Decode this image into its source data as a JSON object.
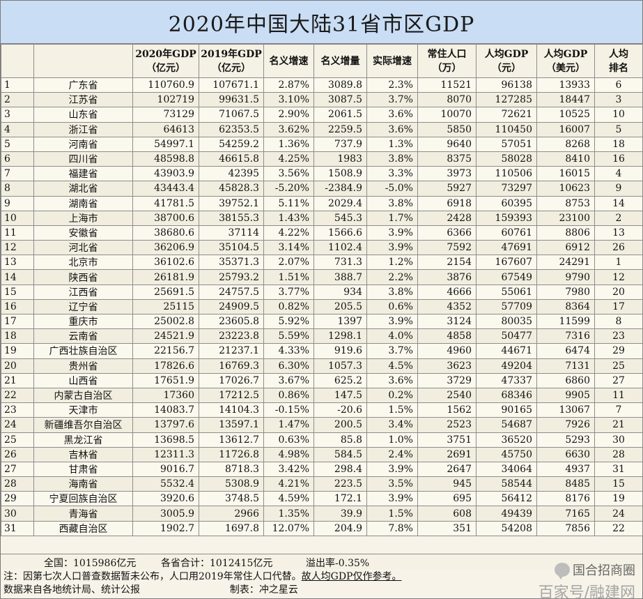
{
  "title": "2020年中国大陆31省市区GDP",
  "headers": [
    "",
    "",
    "2020年GDP\n（亿元）",
    "2019年GDP\n（亿元）",
    "名义增速",
    "名义增量",
    "实际增速",
    "常住人口\n（万）",
    "人均GDP\n（元）",
    "人均GDP\n（美元）",
    "人均\n排名"
  ],
  "rows": [
    [
      "1",
      "广东省",
      "110760.9",
      "107671.1",
      "2.87%",
      "3089.8",
      "2.3%",
      "11521",
      "96138",
      "13933",
      "6"
    ],
    [
      "2",
      "江苏省",
      "102719",
      "99631.5",
      "3.10%",
      "3087.5",
      "3.7%",
      "8070",
      "127285",
      "18447",
      "3"
    ],
    [
      "3",
      "山东省",
      "73129",
      "71067.5",
      "2.90%",
      "2061.5",
      "3.6%",
      "10070",
      "72621",
      "10525",
      "10"
    ],
    [
      "4",
      "浙江省",
      "64613",
      "62353.5",
      "3.62%",
      "2259.5",
      "3.6%",
      "5850",
      "110450",
      "16007",
      "5"
    ],
    [
      "5",
      "河南省",
      "54997.1",
      "54259.2",
      "1.36%",
      "737.9",
      "1.3%",
      "9640",
      "57051",
      "8268",
      "18"
    ],
    [
      "6",
      "四川省",
      "48598.8",
      "46615.8",
      "4.25%",
      "1983",
      "3.8%",
      "8375",
      "58028",
      "8410",
      "16"
    ],
    [
      "7",
      "福建省",
      "43903.9",
      "42395",
      "3.56%",
      "1508.9",
      "3.3%",
      "3973",
      "110506",
      "16015",
      "4"
    ],
    [
      "8",
      "湖北省",
      "43443.4",
      "45828.3",
      "-5.20%",
      "-2384.9",
      "-5.0%",
      "5927",
      "73297",
      "10623",
      "9"
    ],
    [
      "9",
      "湖南省",
      "41781.5",
      "39752.1",
      "5.11%",
      "2029.4",
      "3.8%",
      "6918",
      "60395",
      "8753",
      "14"
    ],
    [
      "10",
      "上海市",
      "38700.6",
      "38155.3",
      "1.43%",
      "545.3",
      "1.7%",
      "2428",
      "159393",
      "23100",
      "2"
    ],
    [
      "11",
      "安徽省",
      "38680.6",
      "37114",
      "4.22%",
      "1566.6",
      "3.9%",
      "6366",
      "60761",
      "8806",
      "13"
    ],
    [
      "12",
      "河北省",
      "36206.9",
      "35104.5",
      "3.14%",
      "1102.4",
      "3.9%",
      "7592",
      "47691",
      "6912",
      "26"
    ],
    [
      "13",
      "北京市",
      "36102.6",
      "35371.3",
      "2.07%",
      "731.3",
      "1.2%",
      "2154",
      "167607",
      "24291",
      "1"
    ],
    [
      "14",
      "陕西省",
      "26181.9",
      "25793.2",
      "1.51%",
      "388.7",
      "2.2%",
      "3876",
      "67549",
      "9790",
      "12"
    ],
    [
      "15",
      "江西省",
      "25691.5",
      "24757.5",
      "3.77%",
      "934",
      "3.8%",
      "4666",
      "55061",
      "7980",
      "20"
    ],
    [
      "16",
      "辽宁省",
      "25115",
      "24909.5",
      "0.82%",
      "205.5",
      "0.6%",
      "4352",
      "57709",
      "8364",
      "17"
    ],
    [
      "17",
      "重庆市",
      "25002.8",
      "23605.8",
      "5.92%",
      "1397",
      "3.9%",
      "3124",
      "80035",
      "11599",
      "8"
    ],
    [
      "18",
      "云南省",
      "24521.9",
      "23223.8",
      "5.59%",
      "1298.1",
      "4.0%",
      "4858",
      "50477",
      "7316",
      "23"
    ],
    [
      "19",
      "广西壮族自治区",
      "22156.7",
      "21237.1",
      "4.33%",
      "919.6",
      "3.7%",
      "4960",
      "44671",
      "6474",
      "29"
    ],
    [
      "20",
      "贵州省",
      "17826.6",
      "16769.3",
      "6.30%",
      "1057.3",
      "4.5%",
      "3623",
      "49204",
      "7131",
      "25"
    ],
    [
      "21",
      "山西省",
      "17651.9",
      "17026.7",
      "3.67%",
      "625.2",
      "3.6%",
      "3729",
      "47337",
      "6860",
      "27"
    ],
    [
      "22",
      "内蒙古自治区",
      "17360",
      "17212.5",
      "0.86%",
      "147.5",
      "0.2%",
      "2540",
      "68346",
      "9905",
      "11"
    ],
    [
      "23",
      "天津市",
      "14083.7",
      "14104.3",
      "-0.15%",
      "-20.6",
      "1.5%",
      "1562",
      "90165",
      "13067",
      "7"
    ],
    [
      "24",
      "新疆维吾尔自治区",
      "13797.6",
      "13597.1",
      "1.47%",
      "200.5",
      "3.4%",
      "2523",
      "54687",
      "7926",
      "21"
    ],
    [
      "25",
      "黑龙江省",
      "13698.5",
      "13612.7",
      "0.63%",
      "85.8",
      "1.0%",
      "3751",
      "36520",
      "5293",
      "30"
    ],
    [
      "26",
      "吉林省",
      "12311.3",
      "11726.8",
      "4.98%",
      "584.5",
      "2.4%",
      "2691",
      "45750",
      "6630",
      "28"
    ],
    [
      "27",
      "甘肃省",
      "9016.7",
      "8718.3",
      "3.42%",
      "298.4",
      "3.9%",
      "2647",
      "34064",
      "4937",
      "31"
    ],
    [
      "28",
      "海南省",
      "5532.4",
      "5308.9",
      "4.21%",
      "223.5",
      "3.5%",
      "945",
      "58544",
      "8485",
      "15"
    ],
    [
      "29",
      "宁夏回族自治区",
      "3920.6",
      "3748.5",
      "4.59%",
      "172.1",
      "3.9%",
      "695",
      "56412",
      "8176",
      "19"
    ],
    [
      "30",
      "青海省",
      "3005.9",
      "2966",
      "1.35%",
      "39.9",
      "1.5%",
      "608",
      "49439",
      "7165",
      "24"
    ],
    [
      "31",
      "西藏自治区",
      "1902.7",
      "1697.8",
      "12.07%",
      "204.9",
      "7.8%",
      "351",
      "54208",
      "7856",
      "22"
    ]
  ],
  "summary": {
    "national": "全国：1015986亿元",
    "provinces_total": "各省合计：1012415亿元",
    "overflow_rate": "溢出率-0.35%"
  },
  "notes": {
    "line1_prefix": "注：因第七次人口普查数据暂未公布，人口用2019年常住人口代替。",
    "line1_emphasis": "故人均GDP仅作参考。",
    "line2_source": "数据来自各地统计局、统计公报",
    "line2_maker": "制表：冲之星云"
  },
  "watermark": {
    "top": "国合招商圈",
    "bottom": "百家号/融建网",
    "icon": "wechat-bubble-icon"
  }
}
